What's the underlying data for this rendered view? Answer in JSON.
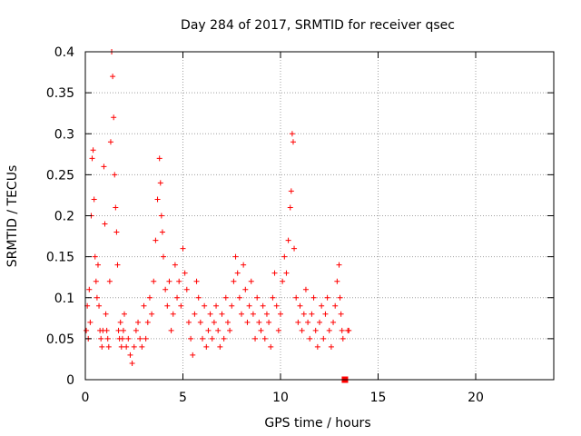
{
  "chart_data": {
    "type": "scatter",
    "title": "Day 284 of 2017, SRMTID for receiver qsec",
    "xlabel": "GPS time / hours",
    "ylabel": "SRMTID / TECUs",
    "xlim": [
      0,
      24
    ],
    "ylim": [
      0,
      0.4
    ],
    "x_ticks": [
      0,
      5,
      10,
      15,
      20
    ],
    "x_tick_labels": [
      "0",
      "5",
      "10",
      "15",
      "20"
    ],
    "y_ticks": [
      0,
      0.05,
      0.1,
      0.15,
      0.2,
      0.25,
      0.3,
      0.35,
      0.4
    ],
    "y_tick_labels": [
      "0",
      "0.05",
      "0.1",
      "0.15",
      "0.2",
      "0.25",
      "0.3",
      "0.35",
      "0.4"
    ],
    "grid": true,
    "marker": "plus",
    "color": "#ff0000",
    "series": [
      {
        "name": "SRMTID",
        "points": [
          [
            0.05,
            0.06
          ],
          [
            0.1,
            0.09
          ],
          [
            0.15,
            0.05
          ],
          [
            0.2,
            0.11
          ],
          [
            0.25,
            0.07
          ],
          [
            0.3,
            0.2
          ],
          [
            0.35,
            0.27
          ],
          [
            0.4,
            0.28
          ],
          [
            0.45,
            0.22
          ],
          [
            0.5,
            0.15
          ],
          [
            0.55,
            0.12
          ],
          [
            0.6,
            0.1
          ],
          [
            0.65,
            0.14
          ],
          [
            0.7,
            0.09
          ],
          [
            0.75,
            0.06
          ],
          [
            0.8,
            0.05
          ],
          [
            0.85,
            0.04
          ],
          [
            0.9,
            0.06
          ],
          [
            0.95,
            0.26
          ],
          [
            1.0,
            0.19
          ],
          [
            1.05,
            0.08
          ],
          [
            1.1,
            0.06
          ],
          [
            1.15,
            0.05
          ],
          [
            1.2,
            0.04
          ],
          [
            1.25,
            0.12
          ],
          [
            1.3,
            0.29
          ],
          [
            1.35,
            0.4
          ],
          [
            1.4,
            0.37
          ],
          [
            1.45,
            0.32
          ],
          [
            1.5,
            0.25
          ],
          [
            1.55,
            0.21
          ],
          [
            1.6,
            0.18
          ],
          [
            1.65,
            0.14
          ],
          [
            1.7,
            0.06
          ],
          [
            1.75,
            0.05
          ],
          [
            1.8,
            0.07
          ],
          [
            1.85,
            0.04
          ],
          [
            1.9,
            0.05
          ],
          [
            1.95,
            0.06
          ],
          [
            2.0,
            0.08
          ],
          [
            2.1,
            0.04
          ],
          [
            2.2,
            0.05
          ],
          [
            2.3,
            0.03
          ],
          [
            2.4,
            0.02
          ],
          [
            2.5,
            0.04
          ],
          [
            2.6,
            0.06
          ],
          [
            2.7,
            0.07
          ],
          [
            2.8,
            0.05
          ],
          [
            2.9,
            0.04
          ],
          [
            3.0,
            0.09
          ],
          [
            3.1,
            0.05
          ],
          [
            3.2,
            0.07
          ],
          [
            3.3,
            0.1
          ],
          [
            3.4,
            0.08
          ],
          [
            3.5,
            0.12
          ],
          [
            3.6,
            0.17
          ],
          [
            3.7,
            0.22
          ],
          [
            3.8,
            0.27
          ],
          [
            3.85,
            0.24
          ],
          [
            3.9,
            0.2
          ],
          [
            3.95,
            0.18
          ],
          [
            4.0,
            0.15
          ],
          [
            4.1,
            0.11
          ],
          [
            4.2,
            0.09
          ],
          [
            4.3,
            0.12
          ],
          [
            4.4,
            0.06
          ],
          [
            4.5,
            0.08
          ],
          [
            4.6,
            0.14
          ],
          [
            4.7,
            0.1
          ],
          [
            4.8,
            0.12
          ],
          [
            4.9,
            0.09
          ],
          [
            5.0,
            0.16
          ],
          [
            5.1,
            0.13
          ],
          [
            5.2,
            0.11
          ],
          [
            5.3,
            0.07
          ],
          [
            5.4,
            0.05
          ],
          [
            5.5,
            0.03
          ],
          [
            5.6,
            0.08
          ],
          [
            5.7,
            0.12
          ],
          [
            5.8,
            0.1
          ],
          [
            5.9,
            0.07
          ],
          [
            6.0,
            0.05
          ],
          [
            6.1,
            0.09
          ],
          [
            6.2,
            0.04
          ],
          [
            6.3,
            0.06
          ],
          [
            6.4,
            0.08
          ],
          [
            6.5,
            0.05
          ],
          [
            6.6,
            0.07
          ],
          [
            6.7,
            0.09
          ],
          [
            6.8,
            0.06
          ],
          [
            6.9,
            0.04
          ],
          [
            7.0,
            0.08
          ],
          [
            7.1,
            0.05
          ],
          [
            7.2,
            0.1
          ],
          [
            7.3,
            0.07
          ],
          [
            7.4,
            0.06
          ],
          [
            7.5,
            0.09
          ],
          [
            7.6,
            0.12
          ],
          [
            7.7,
            0.15
          ],
          [
            7.8,
            0.13
          ],
          [
            7.9,
            0.1
          ],
          [
            8.0,
            0.08
          ],
          [
            8.1,
            0.14
          ],
          [
            8.2,
            0.11
          ],
          [
            8.3,
            0.07
          ],
          [
            8.4,
            0.09
          ],
          [
            8.5,
            0.12
          ],
          [
            8.6,
            0.08
          ],
          [
            8.7,
            0.05
          ],
          [
            8.8,
            0.1
          ],
          [
            8.9,
            0.07
          ],
          [
            9.0,
            0.06
          ],
          [
            9.1,
            0.09
          ],
          [
            9.2,
            0.05
          ],
          [
            9.3,
            0.08
          ],
          [
            9.4,
            0.07
          ],
          [
            9.5,
            0.04
          ],
          [
            9.6,
            0.1
          ],
          [
            9.7,
            0.13
          ],
          [
            9.8,
            0.09
          ],
          [
            9.9,
            0.06
          ],
          [
            10.0,
            0.08
          ],
          [
            10.1,
            0.12
          ],
          [
            10.2,
            0.15
          ],
          [
            10.3,
            0.13
          ],
          [
            10.4,
            0.17
          ],
          [
            10.5,
            0.21
          ],
          [
            10.55,
            0.23
          ],
          [
            10.6,
            0.3
          ],
          [
            10.65,
            0.29
          ],
          [
            10.7,
            0.16
          ],
          [
            10.8,
            0.1
          ],
          [
            10.9,
            0.07
          ],
          [
            11.0,
            0.09
          ],
          [
            11.1,
            0.06
          ],
          [
            11.2,
            0.08
          ],
          [
            11.3,
            0.11
          ],
          [
            11.4,
            0.07
          ],
          [
            11.5,
            0.05
          ],
          [
            11.6,
            0.08
          ],
          [
            11.7,
            0.1
          ],
          [
            11.8,
            0.06
          ],
          [
            11.9,
            0.04
          ],
          [
            12.0,
            0.07
          ],
          [
            12.1,
            0.09
          ],
          [
            12.2,
            0.05
          ],
          [
            12.3,
            0.08
          ],
          [
            12.4,
            0.1
          ],
          [
            12.5,
            0.06
          ],
          [
            12.6,
            0.04
          ],
          [
            12.7,
            0.07
          ],
          [
            12.8,
            0.09
          ],
          [
            12.9,
            0.12
          ],
          [
            13.0,
            0.14
          ],
          [
            13.05,
            0.1
          ],
          [
            13.1,
            0.08
          ],
          [
            13.15,
            0.06
          ],
          [
            13.2,
            0.05
          ],
          [
            13.45,
            0.06
          ],
          [
            13.5,
            0.06
          ]
        ]
      }
    ],
    "annotations": [
      {
        "label": "zero-marker",
        "x": 13.3,
        "y": 0.0,
        "marker": "square"
      }
    ]
  }
}
